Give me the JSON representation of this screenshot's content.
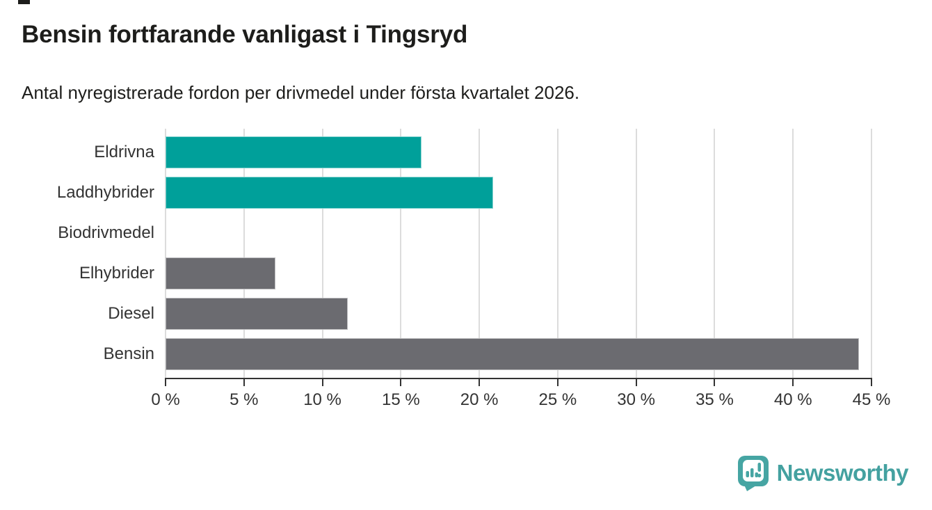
{
  "page": {
    "background": "#ffffff"
  },
  "header": {
    "title": "Bensin fortfarande vanligast i Tingsryd",
    "subtitle": "Antal nyregistrerade fordon per drivmedel under första kvartalet 2026."
  },
  "chart_data": {
    "type": "bar",
    "orientation": "horizontal",
    "title": "Bensin fortfarande vanligast i Tingsryd",
    "subtitle": "Antal nyregistrerade fordon per drivmedel under första kvartalet 2026.",
    "categories": [
      "Eldrivna",
      "Laddhybrider",
      "Biodrivmedel",
      "Elhybrider",
      "Diesel",
      "Bensin"
    ],
    "values": [
      16.3,
      20.9,
      0,
      7.0,
      11.6,
      44.2
    ],
    "unit": "%",
    "bar_colors": [
      "#00a09a",
      "#00a09a",
      "#00a09a",
      "#6b6b70",
      "#6b6b70",
      "#6b6b70"
    ],
    "xlabel": "",
    "ylabel": "",
    "xlim": [
      0,
      45
    ],
    "x_ticks": [
      0,
      5,
      10,
      15,
      20,
      25,
      30,
      35,
      40,
      45
    ],
    "x_tick_label_format": "{v} %",
    "grid": true,
    "legend_position": "none"
  },
  "branding": {
    "logo_text": "Newsworthy",
    "logo_color": "#44a1a0",
    "logo_icon": "newsworthy-pin-barchart-icon"
  },
  "colors": {
    "teal_bar": "#00a09a",
    "gray_bar": "#6b6b70",
    "gridline": "#dcdcdc",
    "axis": "#333333",
    "text_dark": "#1d1d1b",
    "label_gray": "#333333"
  }
}
